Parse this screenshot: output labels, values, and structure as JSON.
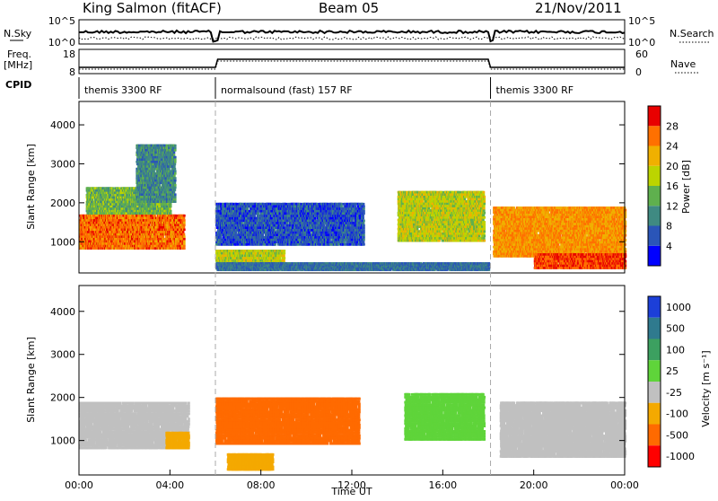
{
  "header": {
    "station": "King Salmon (fitACF)",
    "beam": "Beam 05",
    "date": "21/Nov/2011"
  },
  "side_labels": {
    "nsky": "N.Sky",
    "freq": "Freq.",
    "freq_unit": "[MHz]",
    "cpid": "CPID",
    "nsearch": "N.Search",
    "nave": "Nave",
    "nsky_ticks": [
      "10^5",
      "10^0"
    ],
    "nsearch_ticks": [
      "10^5",
      "10^0"
    ],
    "freq_ticks": [
      "18",
      "8"
    ],
    "nave_ticks": [
      "60",
      "0"
    ]
  },
  "cpid_segments": [
    {
      "label": "themis 3300 RF",
      "start_hour": 0,
      "end_hour": 6
    },
    {
      "label": "normalsound (fast) 157 RF",
      "start_hour": 6,
      "end_hour": 18.1
    },
    {
      "label": "themis 3300 RF",
      "start_hour": 18.1,
      "end_hour": 24
    }
  ],
  "chart_data": [
    {
      "type": "heatmap",
      "name": "power-panel",
      "ylabel": "Slant Range [km]",
      "xlabel": "",
      "xlim": [
        0,
        24
      ],
      "ylim": [
        200,
        4600
      ],
      "y_ticks": [
        "1000",
        "2000",
        "3000",
        "4000"
      ],
      "colorbar": {
        "label": "Power [dB]",
        "ticks": [
          "4",
          "8",
          "12",
          "16",
          "20",
          "24",
          "28"
        ],
        "range": [
          0,
          32
        ],
        "colors": [
          "#0000ff",
          "#2a55b8",
          "#3f8a82",
          "#5fb04e",
          "#bcd400",
          "#f0b000",
          "#ff7000",
          "#e80000"
        ]
      },
      "regions": [
        {
          "t0": 0.0,
          "t1": 4.6,
          "r0": 800,
          "r1": 1700,
          "level": 26
        },
        {
          "t0": 0.3,
          "t1": 4.0,
          "r0": 1700,
          "r1": 2400,
          "level": 14
        },
        {
          "t0": 6.0,
          "t1": 12.5,
          "r0": 900,
          "r1": 2000,
          "level": 6
        },
        {
          "t0": 6.0,
          "t1": 9.0,
          "r0": 300,
          "r1": 800,
          "level": 18
        },
        {
          "t0": 6.0,
          "t1": 18.0,
          "r0": 250,
          "r1": 450,
          "level": 8
        },
        {
          "t0": 14.0,
          "t1": 17.8,
          "r0": 1000,
          "r1": 2300,
          "level": 18
        },
        {
          "t0": 18.2,
          "t1": 24.0,
          "r0": 600,
          "r1": 1900,
          "level": 24
        },
        {
          "t0": 2.5,
          "t1": 4.2,
          "r0": 2000,
          "r1": 3500,
          "level": 10
        },
        {
          "t0": 20.0,
          "t1": 24.0,
          "r0": 300,
          "r1": 700,
          "level": 28
        }
      ]
    },
    {
      "type": "heatmap",
      "name": "velocity-panel",
      "ylabel": "Slant Range [km]",
      "xlabel": "Time UT",
      "xlim": [
        0,
        24
      ],
      "ylim": [
        200,
        4600
      ],
      "x_ticks": [
        "00:00",
        "04:00",
        "08:00",
        "12:00",
        "16:00",
        "20:00",
        "00:00"
      ],
      "y_ticks": [
        "1000",
        "2000",
        "3000",
        "4000"
      ],
      "colorbar": {
        "label": "Velocity [m s⁻¹]",
        "ticks": [
          "1000",
          "500",
          "100",
          "25",
          "-25",
          "-100",
          "-500",
          "-1000"
        ],
        "colors": [
          "#1c3fd8",
          "#2f7a8e",
          "#3ca060",
          "#5fd43a",
          "#c0c0c0",
          "#f4a900",
          "#ff6a00",
          "#ff0000"
        ]
      },
      "regions": [
        {
          "t0": 0.0,
          "t1": 4.8,
          "r0": 800,
          "r1": 1900,
          "level": 0
        },
        {
          "t0": 6.0,
          "t1": 12.3,
          "r0": 900,
          "r1": 2000,
          "level": -150
        },
        {
          "t0": 6.5,
          "t1": 8.5,
          "r0": 300,
          "r1": 700,
          "level": -60
        },
        {
          "t0": 14.3,
          "t1": 17.8,
          "r0": 1000,
          "r1": 2100,
          "level": 60
        },
        {
          "t0": 18.5,
          "t1": 24.0,
          "r0": 600,
          "r1": 1900,
          "level": 0
        },
        {
          "t0": 3.8,
          "t1": 4.8,
          "r0": 800,
          "r1": 1200,
          "level": -60
        }
      ]
    }
  ]
}
